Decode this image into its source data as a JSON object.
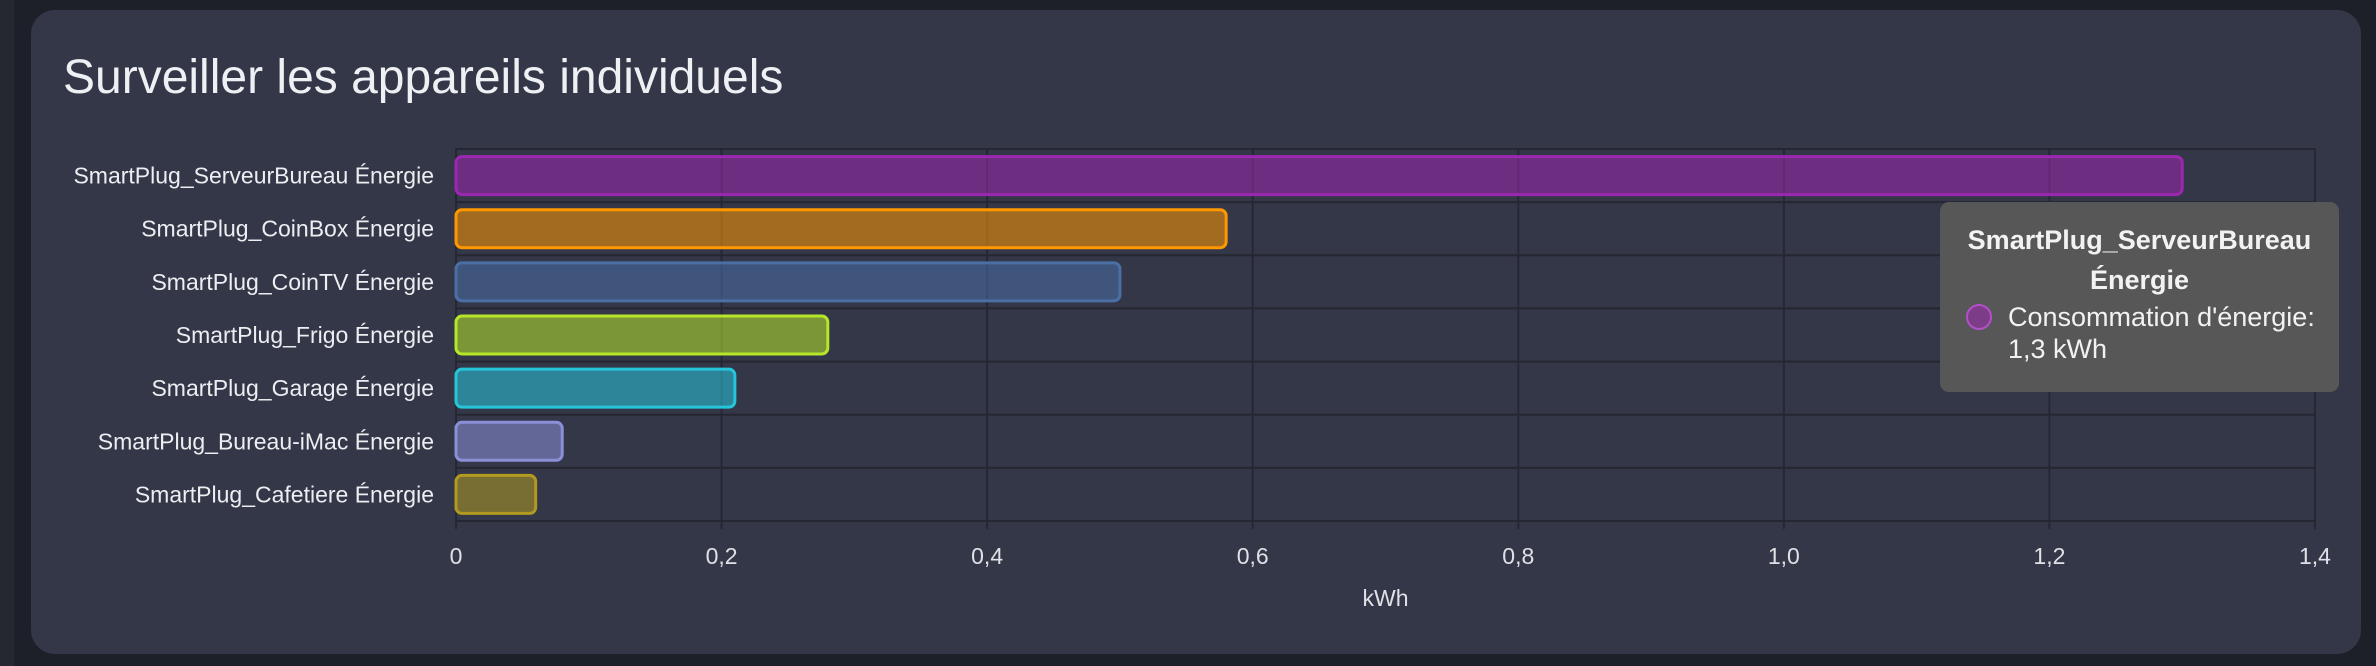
{
  "card": {
    "title": "Surveiller les appareils individuels"
  },
  "chart_data": {
    "type": "bar",
    "orientation": "horizontal",
    "categories": [
      "SmartPlug_ServeurBureau Énergie",
      "SmartPlug_CoinBox Énergie",
      "SmartPlug_CoinTV Énergie",
      "SmartPlug_Frigo Énergie",
      "SmartPlug_Garage Énergie",
      "SmartPlug_Bureau-iMac Énergie",
      "SmartPlug_Cafetiere Énergie"
    ],
    "values": [
      1.3,
      0.58,
      0.5,
      0.28,
      0.21,
      0.08,
      0.06
    ],
    "colors": [
      "#9c27b0",
      "#ff9800",
      "#4a6fa5",
      "#b6e62a",
      "#26c6da",
      "#8a8fd8",
      "#b09a20"
    ],
    "xlabel": "kWh",
    "xlim": [
      0,
      1.4
    ],
    "xticks": [
      "0",
      "0,2",
      "0,4",
      "0,6",
      "0,8",
      "1,0",
      "1,2",
      "1,4"
    ],
    "grid": true,
    "legend": "none"
  },
  "tooltip": {
    "title_line1": "SmartPlug_ServeurBureau",
    "title_line2": "Énergie",
    "series_label": "Consommation d'énergie:",
    "value": "1,3 kWh",
    "swatch_color": "#9c27b0"
  }
}
